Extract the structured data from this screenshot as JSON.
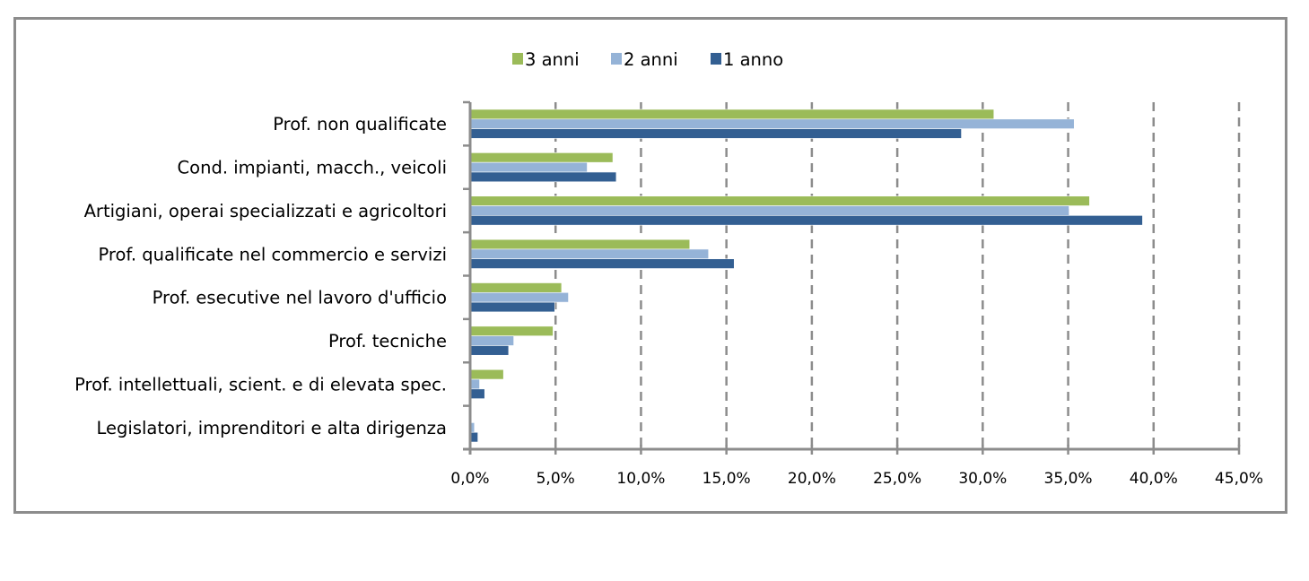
{
  "chart_data": {
    "type": "bar",
    "orientation": "horizontal",
    "categories": [
      "Prof. non qualificate",
      "Cond. impianti, macch., veicoli",
      "Artigiani, operai specializzati e agricoltori",
      "Prof. qualificate nel commercio e servizi",
      "Prof. esecutive nel lavoro d'ufficio",
      "Prof. tecniche",
      "Prof. intellettuali, scient. e di elevata spec.",
      "Legislatori, imprenditori e alta dirigenza"
    ],
    "series": [
      {
        "name": "3 anni",
        "color": "#9bbb59",
        "values": [
          30.6,
          8.3,
          36.2,
          12.8,
          5.3,
          4.8,
          1.9,
          0.0
        ]
      },
      {
        "name": "2 anni",
        "color": "#95b3d7",
        "values": [
          35.3,
          6.8,
          35.0,
          13.9,
          5.7,
          2.5,
          0.5,
          0.2
        ]
      },
      {
        "name": "1 anno",
        "color": "#335f92",
        "values": [
          28.7,
          8.5,
          39.3,
          15.4,
          4.9,
          2.2,
          0.8,
          0.4
        ]
      }
    ],
    "xlim": [
      0,
      45
    ],
    "xticks": [
      0,
      5,
      10,
      15,
      20,
      25,
      30,
      35,
      40,
      45
    ],
    "xtick_labels": [
      "0,0%",
      "5,0%",
      "10,0%",
      "15,0%",
      "20,0%",
      "25,0%",
      "30,0%",
      "35,0%",
      "40,0%",
      "45,0%"
    ],
    "title": "",
    "xlabel": "",
    "ylabel": "",
    "grid": "vertical dashed",
    "legend": {
      "position": "top",
      "order": [
        "3 anni",
        "2 anni",
        "1 anno"
      ]
    },
    "axis_color": "#8c8c8c"
  }
}
